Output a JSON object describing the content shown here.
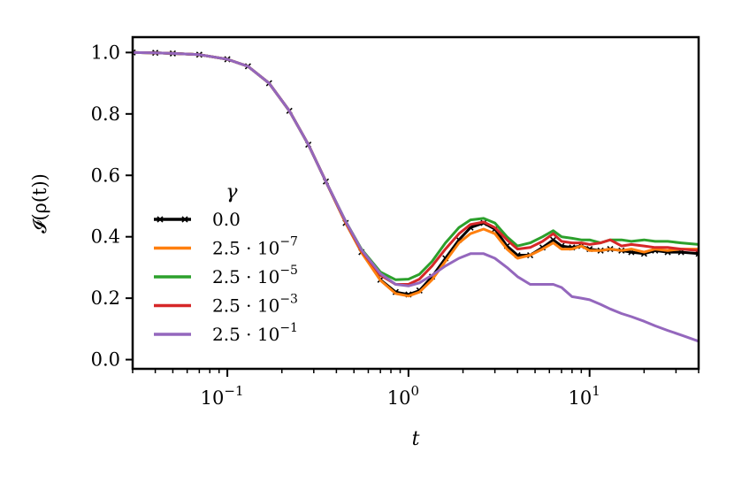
{
  "chart_data": {
    "type": "line",
    "xscale": "log",
    "xlim": [
      0.03,
      40
    ],
    "ylim": [
      -0.03,
      1.05
    ],
    "xlabel": "t",
    "ylabel": "𝓘(ρ(t))",
    "x_ticks": [
      {
        "value": 0.1,
        "base": "10",
        "exp": "−1"
      },
      {
        "value": 1,
        "base": "10",
        "exp": "0"
      },
      {
        "value": 10,
        "base": "10",
        "exp": "1"
      }
    ],
    "y_ticks": [
      {
        "value": 0.0,
        "label": "0.0"
      },
      {
        "value": 0.2,
        "label": "0.2"
      },
      {
        "value": 0.4,
        "label": "0.4"
      },
      {
        "value": 0.6,
        "label": "0.6"
      },
      {
        "value": 0.8,
        "label": "0.8"
      },
      {
        "value": 1.0,
        "label": "1.0"
      }
    ],
    "legend": {
      "title": "γ",
      "placement": "lower-left"
    },
    "x": [
      0.03,
      0.04,
      0.05,
      0.07,
      0.1,
      0.13,
      0.17,
      0.22,
      0.28,
      0.35,
      0.45,
      0.55,
      0.7,
      0.85,
      1.0,
      1.15,
      1.35,
      1.6,
      1.9,
      2.2,
      2.6,
      3.0,
      3.5,
      4.0,
      4.7,
      5.5,
      6.3,
      7.0,
      8.0,
      9.0,
      10.0,
      11.5,
      13.0,
      15.0,
      17.0,
      20.0,
      23.0,
      27.0,
      32.0,
      40.0
    ],
    "series": [
      {
        "name": "0.0",
        "label_base": "0.0",
        "label_exp": "",
        "color": "#000000",
        "markers": true,
        "values": [
          1.0,
          0.999,
          0.997,
          0.993,
          0.978,
          0.955,
          0.9,
          0.81,
          0.7,
          0.58,
          0.445,
          0.35,
          0.26,
          0.22,
          0.212,
          0.225,
          0.27,
          0.33,
          0.39,
          0.43,
          0.445,
          0.425,
          0.37,
          0.34,
          0.34,
          0.365,
          0.39,
          0.37,
          0.365,
          0.37,
          0.36,
          0.355,
          0.36,
          0.355,
          0.35,
          0.345,
          0.355,
          0.35,
          0.35,
          0.345
        ]
      },
      {
        "name": "2.5 · 10^−7",
        "label_base": "2.5 · 10",
        "label_exp": "−7",
        "color": "#ff7f0e",
        "markers": false,
        "values": [
          1.0,
          0.999,
          0.997,
          0.993,
          0.978,
          0.955,
          0.9,
          0.81,
          0.7,
          0.58,
          0.445,
          0.35,
          0.258,
          0.215,
          0.207,
          0.22,
          0.26,
          0.32,
          0.38,
          0.41,
          0.425,
          0.41,
          0.36,
          0.33,
          0.34,
          0.36,
          0.38,
          0.36,
          0.36,
          0.37,
          0.355,
          0.355,
          0.36,
          0.355,
          0.36,
          0.35,
          0.36,
          0.355,
          0.36,
          0.36
        ]
      },
      {
        "name": "2.5 · 10^−5",
        "label_base": "2.5 · 10",
        "label_exp": "−5",
        "color": "#2ca02c",
        "markers": false,
        "values": [
          1.0,
          0.999,
          0.997,
          0.993,
          0.978,
          0.955,
          0.9,
          0.81,
          0.7,
          0.58,
          0.45,
          0.36,
          0.285,
          0.26,
          0.262,
          0.278,
          0.32,
          0.38,
          0.43,
          0.455,
          0.46,
          0.445,
          0.4,
          0.37,
          0.38,
          0.4,
          0.42,
          0.4,
          0.395,
          0.39,
          0.39,
          0.38,
          0.39,
          0.39,
          0.385,
          0.39,
          0.385,
          0.385,
          0.38,
          0.375
        ]
      },
      {
        "name": "2.5 · 10^−3",
        "label_base": "2.5 · 10",
        "label_exp": "−3",
        "color": "#d62728",
        "markers": false,
        "values": [
          1.0,
          0.999,
          0.997,
          0.993,
          0.978,
          0.955,
          0.9,
          0.81,
          0.7,
          0.58,
          0.448,
          0.355,
          0.275,
          0.245,
          0.245,
          0.262,
          0.305,
          0.36,
          0.41,
          0.44,
          0.448,
          0.43,
          0.39,
          0.36,
          0.365,
          0.385,
          0.41,
          0.385,
          0.38,
          0.38,
          0.375,
          0.38,
          0.39,
          0.37,
          0.375,
          0.37,
          0.365,
          0.365,
          0.36,
          0.355
        ]
      },
      {
        "name": "2.5 · 10^−1",
        "label_base": "2.5 · 10",
        "label_exp": "−1",
        "color": "#9467bd",
        "markers": false,
        "values": [
          1.0,
          0.999,
          0.997,
          0.993,
          0.978,
          0.955,
          0.9,
          0.81,
          0.7,
          0.58,
          0.45,
          0.358,
          0.28,
          0.245,
          0.24,
          0.25,
          0.275,
          0.305,
          0.33,
          0.345,
          0.345,
          0.33,
          0.3,
          0.27,
          0.245,
          0.245,
          0.245,
          0.235,
          0.205,
          0.2,
          0.195,
          0.18,
          0.165,
          0.15,
          0.14,
          0.125,
          0.11,
          0.095,
          0.08,
          0.06
        ]
      }
    ]
  }
}
